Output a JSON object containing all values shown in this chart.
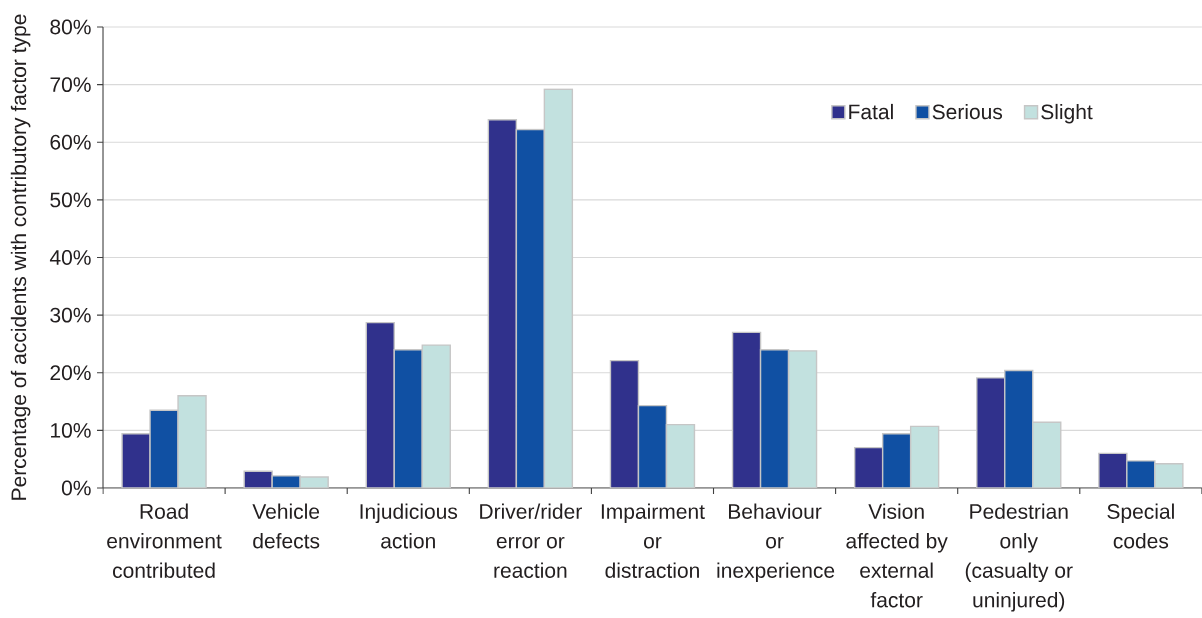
{
  "chart_data": {
    "type": "bar",
    "ylabel": "Percentage of accidents with contributory factor type",
    "categories": [
      "Road environment contributed",
      "Vehicle defects",
      "Injudicious action",
      "Driver/rider error or reaction",
      "Impairment or distraction",
      "Behaviour or inexperience",
      "Vision affected by external factor",
      "Pedestrian only (casualty or uninjured)",
      "Special codes"
    ],
    "series": [
      {
        "name": "Fatal",
        "color": "#30318c",
        "values": [
          9.4,
          2.9,
          28.7,
          63.9,
          22.1,
          27.0,
          7.0,
          19.1,
          6.0
        ]
      },
      {
        "name": "Serious",
        "color": "#1050a3",
        "values": [
          13.5,
          2.1,
          24.0,
          62.2,
          14.3,
          24.0,
          9.4,
          20.4,
          4.7
        ]
      },
      {
        "name": "Slight",
        "color": "#c2e1df",
        "values": [
          16.0,
          1.9,
          24.8,
          69.2,
          11.0,
          23.8,
          10.7,
          11.4,
          4.2
        ]
      }
    ],
    "ylim": [
      0,
      80
    ],
    "yticks": [
      {
        "value": 0,
        "label": "0%"
      },
      {
        "value": 10,
        "label": "10%"
      },
      {
        "value": 20,
        "label": "20%"
      },
      {
        "value": 30,
        "label": "30%"
      },
      {
        "value": 40,
        "label": "40%"
      },
      {
        "value": 50,
        "label": "50%"
      },
      {
        "value": 60,
        "label": "60%"
      },
      {
        "value": 70,
        "label": "70%"
      },
      {
        "value": 80,
        "label": "80%"
      }
    ],
    "grid": "y",
    "legend": "top right"
  }
}
